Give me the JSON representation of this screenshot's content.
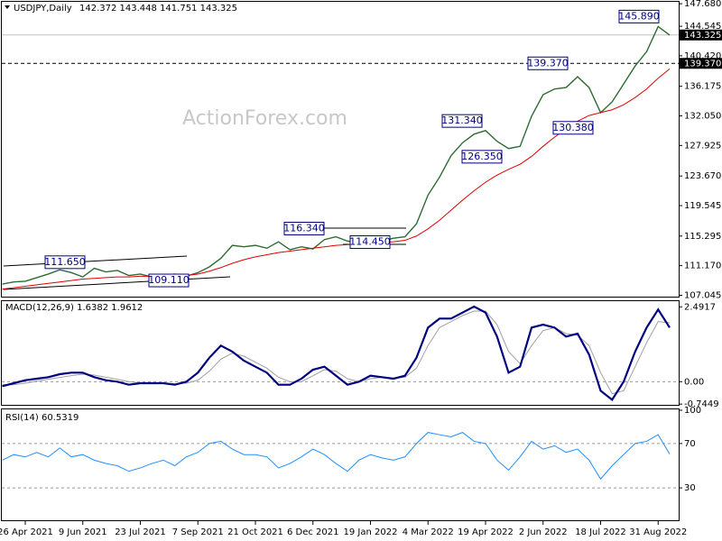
{
  "chart_data": [
    {
      "type": "line",
      "title": "USDJPY,Daily",
      "subtitle": "142.372 143.448 141.751 143.325",
      "annotation": "ActionForex.com",
      "ylim": [
        106.6,
        148.2
      ],
      "yticks": [
        {
          "value": 147.68,
          "label": "147.680"
        },
        {
          "value": 144.545,
          "label": "144.545"
        },
        {
          "value": 140.42,
          "label": "140.420"
        },
        {
          "value": 136.175,
          "label": "136.175"
        },
        {
          "value": 132.05,
          "label": "132.050"
        },
        {
          "value": 127.925,
          "label": "127.925"
        },
        {
          "value": 123.67,
          "label": "123.670"
        },
        {
          "value": 119.545,
          "label": "119.545"
        },
        {
          "value": 115.295,
          "label": "115.295"
        },
        {
          "value": 111.17,
          "label": "111.170"
        },
        {
          "value": 107.045,
          "label": "107.045"
        }
      ],
      "last_price": {
        "value": 143.325,
        "label": "143.325"
      },
      "level": {
        "value": 139.37,
        "label": "139.370"
      },
      "price_labels": [
        {
          "value": 111.65,
          "label": "111.650"
        },
        {
          "value": 109.11,
          "label": "109.110"
        },
        {
          "value": 116.34,
          "label": "116.340"
        },
        {
          "value": 114.45,
          "label": "114.450"
        },
        {
          "value": 131.34,
          "label": "131.340"
        },
        {
          "value": 126.35,
          "label": "126.350"
        },
        {
          "value": 139.37,
          "label": "139.370"
        },
        {
          "value": 130.38,
          "label": "130.380"
        },
        {
          "value": 145.89,
          "label": "145.890"
        }
      ],
      "series": [
        {
          "color": "#2e6b34",
          "values": [
            108.6,
            108.9,
            109.0,
            109.5,
            110.0,
            110.6,
            110.2,
            109.6,
            110.8,
            110.3,
            110.5,
            109.8,
            110.0,
            109.6,
            109.8,
            110.0,
            109.7,
            110.2,
            111.0,
            112.2,
            114.0,
            113.8,
            114.0,
            113.6,
            114.5,
            113.4,
            113.8,
            113.5,
            114.8,
            115.2,
            114.6,
            114.3,
            114.2,
            114.6,
            115.0,
            115.2,
            117.0,
            121.0,
            123.5,
            126.5,
            128.3,
            129.5,
            130.0,
            128.5,
            127.5,
            127.8,
            132.0,
            135.0,
            135.8,
            136.0,
            137.5,
            136.0,
            132.5,
            134.0,
            136.5,
            139.0,
            141.0,
            144.5,
            143.3
          ]
        },
        {
          "color": "#e00000",
          "values": [
            107.9,
            108.1,
            108.3,
            108.5,
            108.7,
            108.9,
            109.1,
            109.3,
            109.4,
            109.5,
            109.6,
            109.6,
            109.7,
            109.7,
            109.7,
            109.8,
            109.8,
            110.0,
            110.4,
            110.9,
            111.5,
            112.0,
            112.4,
            112.7,
            113.0,
            113.2,
            113.4,
            113.6,
            113.8,
            114.0,
            114.1,
            114.2,
            114.3,
            114.4,
            114.5,
            114.7,
            115.3,
            116.3,
            117.5,
            118.9,
            120.3,
            121.6,
            122.8,
            123.8,
            124.6,
            125.3,
            126.4,
            127.8,
            129.1,
            130.2,
            131.3,
            132.1,
            132.5,
            132.9,
            133.6,
            134.6,
            135.8,
            137.3,
            138.6
          ]
        }
      ]
    },
    {
      "type": "line",
      "title": "MACD(12,26,9) 1.6382 1.9612",
      "ylim": [
        -0.8,
        2.65
      ],
      "yticks": [
        {
          "value": 2.4917,
          "label": "2.4917"
        },
        {
          "value": 0,
          "label": "0.00"
        },
        {
          "value": -0.7449,
          "label": "-0.7449"
        }
      ],
      "series": [
        {
          "color": "#a0a0a0",
          "values": [
            -0.1,
            -0.1,
            -0.05,
            0.02,
            0.08,
            0.14,
            0.2,
            0.25,
            0.22,
            0.15,
            0.08,
            0.0,
            -0.04,
            -0.05,
            -0.05,
            -0.07,
            -0.05,
            0.05,
            0.35,
            0.75,
            0.95,
            0.85,
            0.65,
            0.45,
            0.15,
            0.0,
            0.0,
            0.2,
            0.4,
            0.35,
            0.1,
            0.0,
            0.1,
            0.15,
            0.12,
            0.15,
            0.45,
            1.2,
            1.8,
            2.0,
            2.2,
            2.35,
            2.35,
            1.9,
            1.0,
            0.6,
            1.2,
            1.7,
            1.8,
            1.6,
            1.55,
            1.2,
            0.3,
            -0.4,
            -0.3,
            0.5,
            1.3,
            2.0,
            1.96
          ]
        },
        {
          "color": "#000080",
          "values": [
            -0.15,
            -0.05,
            0.05,
            0.1,
            0.15,
            0.25,
            0.3,
            0.3,
            0.15,
            0.05,
            0.0,
            -0.1,
            -0.05,
            -0.05,
            -0.05,
            -0.1,
            0.0,
            0.3,
            0.8,
            1.2,
            1.0,
            0.7,
            0.5,
            0.3,
            -0.1,
            -0.1,
            0.1,
            0.4,
            0.5,
            0.2,
            -0.1,
            0.0,
            0.2,
            0.15,
            0.1,
            0.2,
            0.8,
            1.8,
            2.1,
            2.1,
            2.3,
            2.5,
            2.3,
            1.5,
            0.3,
            0.5,
            1.8,
            1.9,
            1.8,
            1.5,
            1.6,
            0.9,
            -0.3,
            -0.6,
            0.0,
            1.0,
            1.8,
            2.4,
            1.8
          ]
        }
      ]
    },
    {
      "type": "line",
      "title": "RSI(14) 60.5319",
      "ylim": [
        0,
        100
      ],
      "yticks": [
        100,
        70,
        30
      ],
      "categories": [
        null,
        null,
        "26 Apr 2021",
        null,
        null,
        null,
        null,
        "9 Jun 2021",
        null,
        null,
        null,
        null,
        "23 Jul 2021",
        null,
        null,
        null,
        null,
        "7 Sep 2021",
        null,
        null,
        null,
        null,
        "21 Oct 2021",
        null,
        null,
        null,
        null,
        "6 Dec 2021",
        null,
        null,
        null,
        null,
        "19 Jan 2022",
        null,
        null,
        null,
        null,
        "4 Mar 2022",
        null,
        null,
        null,
        null,
        "19 Apr 2022",
        null,
        null,
        null,
        null,
        "2 Jun 2022",
        null,
        null,
        null,
        null,
        "18 Jul 2022",
        null,
        null,
        null,
        null,
        "31 Aug 2022",
        null
      ],
      "series": [
        {
          "color": "#1e90ff",
          "values": [
            55,
            60,
            58,
            62,
            58,
            66,
            58,
            60,
            55,
            52,
            50,
            45,
            48,
            52,
            55,
            50,
            58,
            62,
            70,
            72,
            65,
            60,
            60,
            58,
            48,
            52,
            58,
            65,
            60,
            52,
            45,
            55,
            60,
            57,
            55,
            58,
            70,
            80,
            78,
            76,
            80,
            72,
            70,
            55,
            46,
            58,
            72,
            65,
            68,
            62,
            65,
            55,
            38,
            50,
            60,
            70,
            72,
            78,
            60.5
          ]
        }
      ]
    }
  ]
}
